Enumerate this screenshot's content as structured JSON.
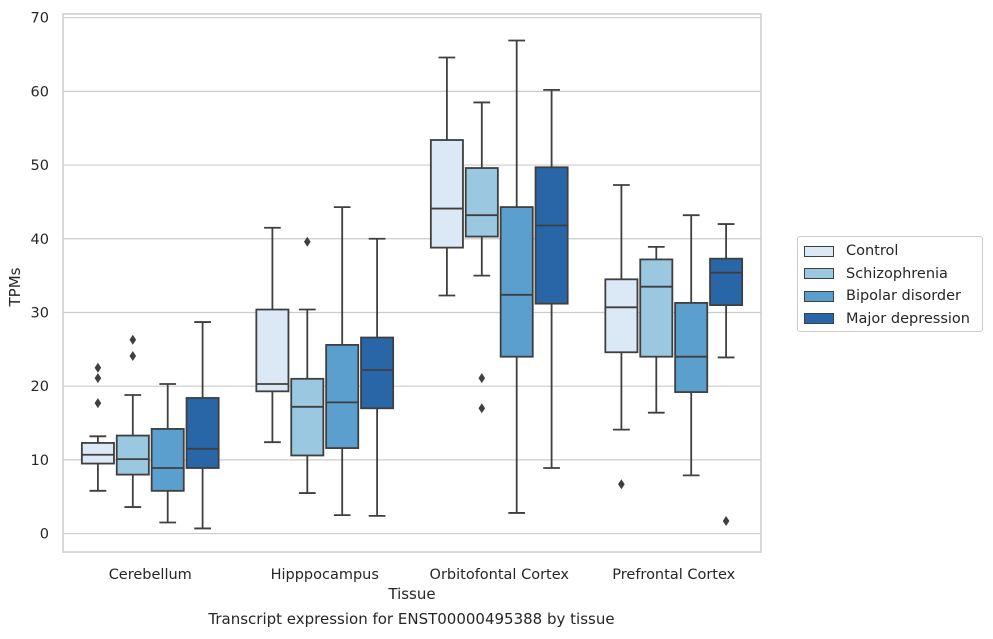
{
  "caption": "Transcript expression for ENST00000495388 by tissue",
  "chart_data": {
    "type": "boxplot",
    "title": "",
    "xlabel": "Tissue",
    "ylabel": "TPMs",
    "ylim": [
      -2.5,
      70.5
    ],
    "yticks": [
      0,
      10,
      20,
      30,
      40,
      50,
      60,
      70
    ],
    "grid": "horizontal",
    "legend_position": "right",
    "categories": [
      "Cerebellum",
      "Hipppocampus",
      "Orbitofontal Cortex",
      "Prefrontal Cortex"
    ],
    "series": [
      {
        "name": "Control",
        "color": "#dbe9f6",
        "boxes": [
          {
            "whisker_low": 5.8,
            "q1": 9.5,
            "median": 10.7,
            "q3": 12.3,
            "whisker_high": 13.2,
            "outliers": [
              17.7,
              21.1,
              22.5
            ]
          },
          {
            "whisker_low": 12.4,
            "q1": 19.3,
            "median": 20.3,
            "q3": 30.4,
            "whisker_high": 41.5,
            "outliers": []
          },
          {
            "whisker_low": 32.3,
            "q1": 38.8,
            "median": 44.1,
            "q3": 53.4,
            "whisker_high": 64.6,
            "outliers": []
          },
          {
            "whisker_low": 14.1,
            "q1": 24.6,
            "median": 30.7,
            "q3": 34.5,
            "whisker_high": 47.3,
            "outliers": [
              6.7
            ]
          }
        ]
      },
      {
        "name": "Schizophrenia",
        "color": "#9ac8e0",
        "boxes": [
          {
            "whisker_low": 3.6,
            "q1": 8.0,
            "median": 10.1,
            "q3": 13.3,
            "whisker_high": 18.8,
            "outliers": [
              24.1,
              26.3
            ]
          },
          {
            "whisker_low": 5.5,
            "q1": 10.6,
            "median": 17.2,
            "q3": 21.0,
            "whisker_high": 30.4,
            "outliers": [
              39.6
            ]
          },
          {
            "whisker_low": 35.0,
            "q1": 40.3,
            "median": 43.2,
            "q3": 49.6,
            "whisker_high": 58.5,
            "outliers": [
              21.1,
              17.0
            ]
          },
          {
            "whisker_low": 16.4,
            "q1": 24.0,
            "median": 33.5,
            "q3": 37.2,
            "whisker_high": 38.9,
            "outliers": []
          }
        ]
      },
      {
        "name": "Bipolar disorder",
        "color": "#5a9fcd",
        "boxes": [
          {
            "whisker_low": 1.5,
            "q1": 5.8,
            "median": 8.9,
            "q3": 14.2,
            "whisker_high": 20.3,
            "outliers": []
          },
          {
            "whisker_low": 2.5,
            "q1": 11.6,
            "median": 17.8,
            "q3": 25.6,
            "whisker_high": 44.3,
            "outliers": []
          },
          {
            "whisker_low": 2.8,
            "q1": 24.0,
            "median": 32.4,
            "q3": 44.3,
            "whisker_high": 66.9,
            "outliers": []
          },
          {
            "whisker_low": 7.9,
            "q1": 19.2,
            "median": 24.0,
            "q3": 31.3,
            "whisker_high": 43.2,
            "outliers": []
          }
        ]
      },
      {
        "name": "Major depression",
        "color": "#2866a8",
        "boxes": [
          {
            "whisker_low": 0.7,
            "q1": 8.9,
            "median": 11.5,
            "q3": 18.4,
            "whisker_high": 28.7,
            "outliers": []
          },
          {
            "whisker_low": 2.4,
            "q1": 17.0,
            "median": 22.2,
            "q3": 26.6,
            "whisker_high": 40.0,
            "outliers": []
          },
          {
            "whisker_low": 8.9,
            "q1": 31.2,
            "median": 41.8,
            "q3": 49.7,
            "whisker_high": 60.2,
            "outliers": []
          },
          {
            "whisker_low": 23.9,
            "q1": 31.0,
            "median": 35.4,
            "q3": 37.3,
            "whisker_high": 42.0,
            "outliers": [
              1.7
            ]
          }
        ]
      }
    ]
  }
}
